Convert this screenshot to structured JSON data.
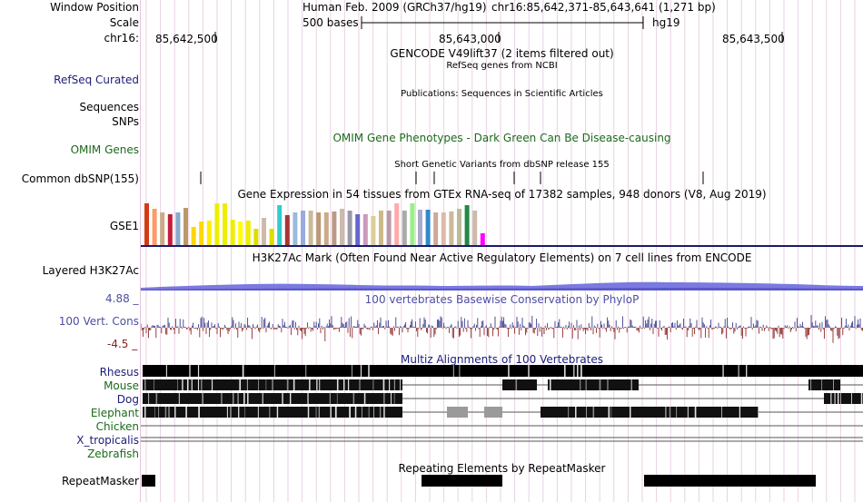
{
  "header": {
    "window_position_label": "Window Position",
    "scale_label": "Scale",
    "chrom_label": "chr16:",
    "assembly_text": "Human Feb. 2009 (GRCh37/hg19)",
    "position_text": "chr16:85,642,371-85,643,641 (1,271 bp)",
    "scale_text": "500 bases",
    "db_text": "hg19",
    "ticks": [
      "85,642,500",
      "85,643,000",
      "85,643,500"
    ]
  },
  "tracks": {
    "gencode": {
      "title": "GENCODE V49lift37 (2 items filtered out)"
    },
    "refseq": {
      "label": "RefSeq Curated",
      "title": "RefSeq genes from NCBI"
    },
    "publications": {
      "title": "Publications: Sequences in Scientific Articles"
    },
    "sequences": {
      "label": "Sequences"
    },
    "snps": {
      "label": "SNPs"
    },
    "omim": {
      "label": "OMIM Genes",
      "title": "OMIM Gene Phenotypes - Dark Green Can Be Disease-causing"
    },
    "dbsnp": {
      "label": "Common dbSNP(155)",
      "title": "Short Genetic Variants from dbSNP release 155"
    },
    "gtex": {
      "label": "GSE1",
      "title": "Gene Expression in 54 tissues from GTEx RNA-seq of 17382 samples, 948 donors (V8, Aug 2019)"
    },
    "h3k27ac": {
      "label": "Layered H3K27Ac",
      "title": "H3K27Ac Mark (Often Found Near Active Regulatory Elements) on 7 cell lines from ENCODE"
    },
    "conservation": {
      "label": "100 Vert. Cons",
      "max": "4.88 _",
      "min": "-4.5 _",
      "title": "100 vertebrates Basewise Conservation by PhyloP"
    },
    "multiz": {
      "title": "Multiz Alignments of 100 Vertebrates",
      "species": [
        "Rhesus",
        "Mouse",
        "Dog",
        "Elephant",
        "Chicken",
        "X_tropicalis",
        "Zebrafish"
      ]
    },
    "repeatmasker": {
      "label": "RepeatMasker",
      "title": "Repeating Elements by RepeatMasker"
    }
  },
  "colors": {
    "label_navy": "#1c1c7a",
    "label_blue": "#4e4ea4",
    "label_green": "#1a6b1a",
    "conservation_pos": "#3c3c8c",
    "conservation_neg": "#8c2828",
    "h3k27ac_fill": "#7a7ae0",
    "gtex_bars": [
      "#d23c14",
      "#ff9966",
      "#ccaa88",
      "#c41e3a",
      "#88aacc",
      "#bb9966",
      "#ffd700",
      "#ffd700",
      "#ffee00",
      "#eeee00",
      "#eeee00",
      "#eeee00",
      "#ffff00",
      "#eeee00",
      "#dddd00",
      "#ccbbaa",
      "#dddd00",
      "#33cccc",
      "#aa3333",
      "#99bbdd",
      "#99aadd",
      "#ccbb99",
      "#bb9977",
      "#ccaa88",
      "#bb9988",
      "#ccbbaa",
      "#9999aa",
      "#6666cc",
      "#cc99bb",
      "#ddcc99",
      "#ccbb88",
      "#bb99aa",
      "#ffaaaa",
      "#aaaaaa",
      "#99ee88",
      "#aaaacc",
      "#3388cc",
      "#ccaa99",
      "#ddbbaa",
      "#ccbb99",
      "#bbbb99",
      "#228844",
      "#ccbbaa",
      "#ff00ff"
    ]
  }
}
